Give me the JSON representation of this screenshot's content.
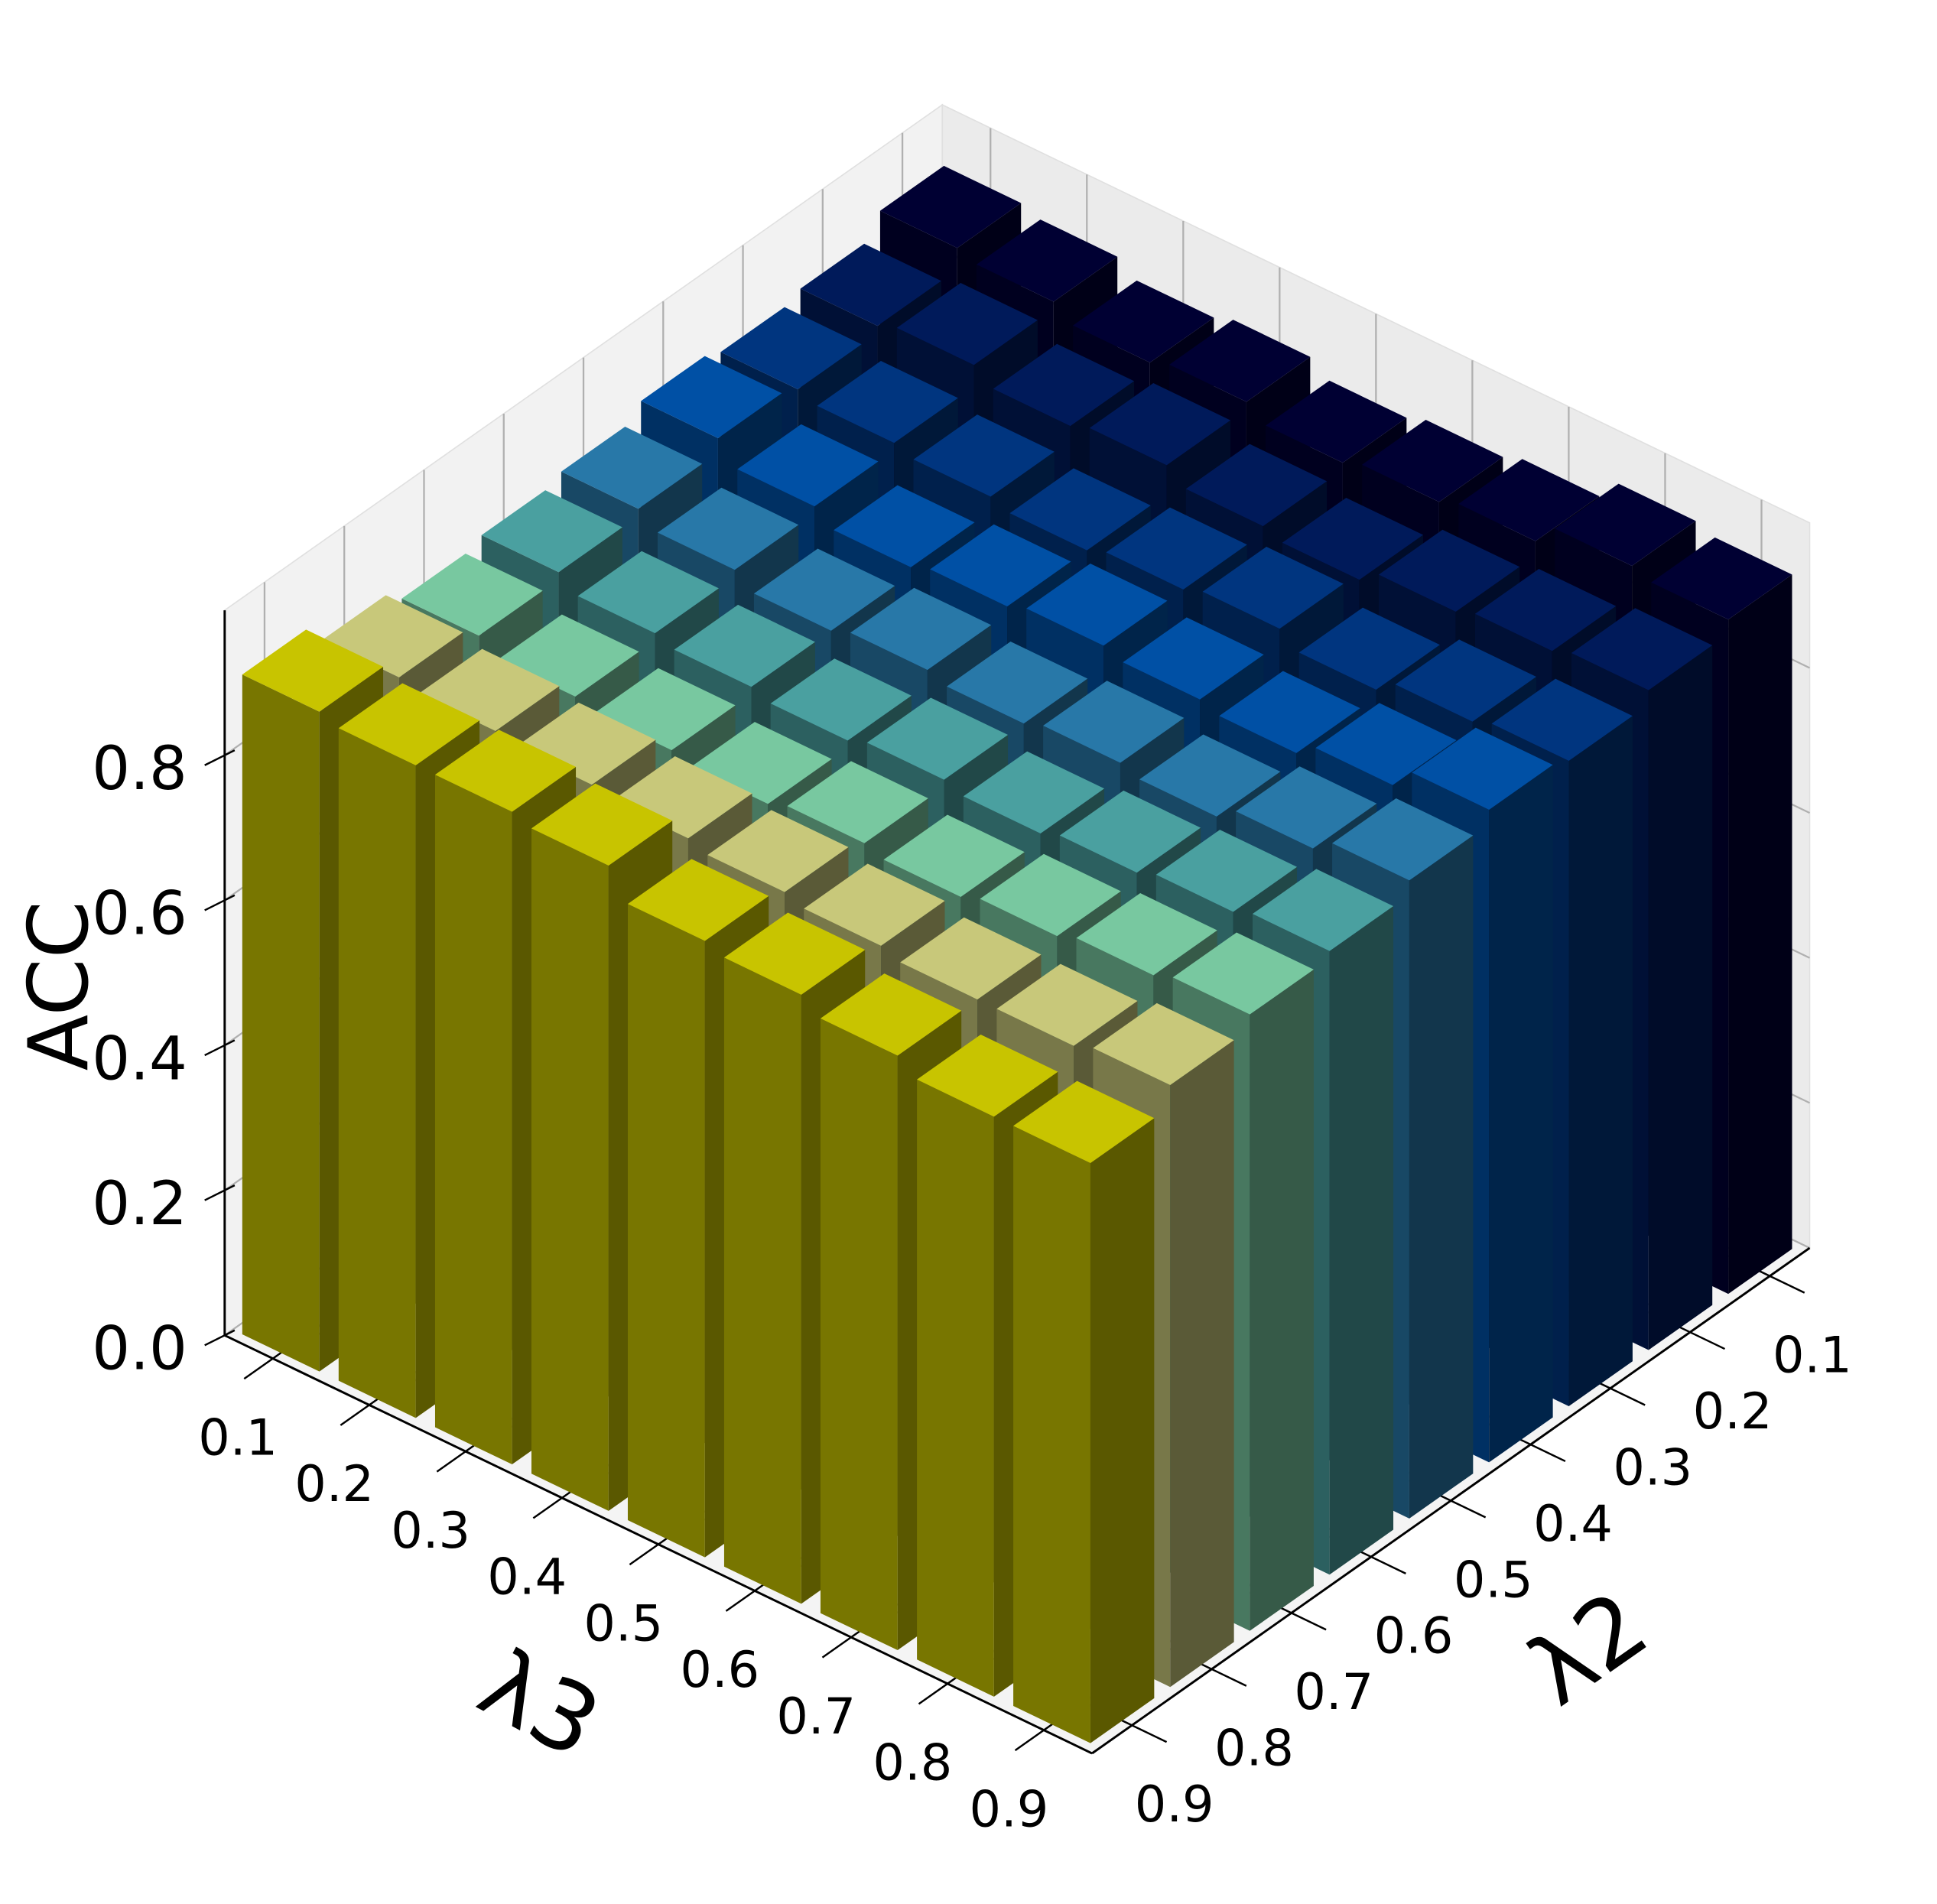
{
  "chart_data": {
    "type": "bar3d",
    "x_label": "λ3",
    "y_label": "λ2",
    "z_label": "ACC",
    "x_categories": [
      "0.1",
      "0.2",
      "0.3",
      "0.4",
      "0.5",
      "0.6",
      "0.7",
      "0.8",
      "0.9"
    ],
    "y_categories": [
      "0.1",
      "0.2",
      "0.3",
      "0.4",
      "0.5",
      "0.6",
      "0.7",
      "0.8",
      "0.9"
    ],
    "zlim": [
      0,
      1
    ],
    "zticks": [
      {
        "value": 0,
        "label": "0.0"
      },
      0.2,
      0.4,
      0.6,
      0.8
    ],
    "grid": true,
    "series": [
      {
        "color": "#000033",
        "values": [
          0.93,
          0.92,
          0.9,
          0.91,
          0.89,
          0.9,
          0.91,
          0.94,
          0.93
        ]
      },
      {
        "color": "#001a5a",
        "values": [
          0.9,
          0.91,
          0.89,
          0.9,
          0.88,
          0.87,
          0.89,
          0.9,
          0.91
        ]
      },
      {
        "color": "#00357f",
        "values": [
          0.89,
          0.88,
          0.87,
          0.86,
          0.87,
          0.88,
          0.86,
          0.88,
          0.89
        ]
      },
      {
        "color": "#0050a5",
        "values": [
          0.9,
          0.87,
          0.85,
          0.86,
          0.87,
          0.86,
          0.85,
          0.87,
          0.9
        ]
      },
      {
        "color": "#2878a8",
        "values": [
          0.88,
          0.86,
          0.84,
          0.85,
          0.84,
          0.85,
          0.84,
          0.86,
          0.88
        ]
      },
      {
        "color": "#4aa0a0",
        "values": [
          0.87,
          0.85,
          0.84,
          0.83,
          0.84,
          0.83,
          0.84,
          0.85,
          0.86
        ]
      },
      {
        "color": "#78c8a0",
        "values": [
          0.86,
          0.84,
          0.83,
          0.82,
          0.83,
          0.82,
          0.83,
          0.84,
          0.85
        ]
      },
      {
        "color": "#c8c87a",
        "values": [
          0.88,
          0.87,
          0.86,
          0.85,
          0.84,
          0.83,
          0.82,
          0.82,
          0.83
        ]
      },
      {
        "color": "#c8c400",
        "values": [
          0.91,
          0.9,
          0.9,
          0.89,
          0.85,
          0.84,
          0.82,
          0.8,
          0.8
        ]
      }
    ]
  }
}
